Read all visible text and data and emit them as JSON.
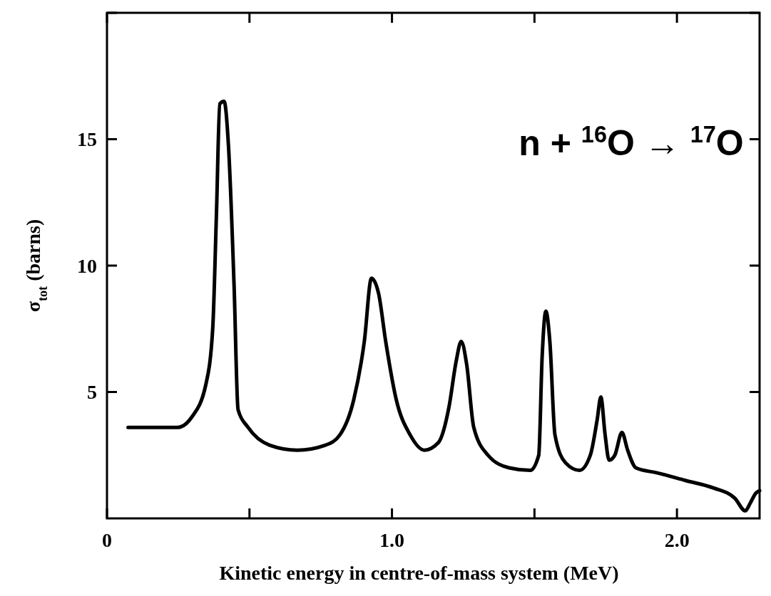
{
  "chart_data": {
    "type": "line",
    "xlabel": "Kinetic energy in centre-of-mass system (MeV)",
    "ylabel": "σ$_{tot}$ (barns)",
    "annotations": [
      "n + $^{16}$O → $^{17}$O"
    ],
    "xlim": [
      0,
      2.29
    ],
    "ylim": [
      0,
      20
    ],
    "xticks": [
      0,
      {
        "value": 0.5,
        "label": null
      },
      {
        "value": 1,
        "label": "1.0"
      },
      {
        "value": 1.5,
        "label": null
      },
      {
        "value": 2,
        "label": "2.0"
      }
    ],
    "yticks": [
      5,
      10,
      15,
      {
        "value": 20,
        "label": null
      }
    ],
    "grid": false,
    "marker": "none",
    "line_style": "solid",
    "series": [
      {
        "color": "#000000",
        "x": [
          0.074,
          0.248,
          0.297,
          0.347,
          0.371,
          0.384,
          0.396,
          0.411,
          0.426,
          0.446,
          0.46,
          0.495,
          0.57,
          0.668,
          0.767,
          0.817,
          0.866,
          0.903,
          0.928,
          0.953,
          0.978,
          1.015,
          1.064,
          1.114,
          1.163,
          1.2,
          1.225,
          1.243,
          1.262,
          1.287,
          1.337,
          1.411,
          1.485,
          1.515,
          1.527,
          1.54,
          1.554,
          1.572,
          1.609,
          1.658,
          1.696,
          1.72,
          1.733,
          1.748,
          1.762,
          1.782,
          1.807,
          1.827,
          1.856,
          1.931,
          2.03,
          2.129,
          2.203,
          2.24,
          2.257,
          2.277,
          2.29
        ],
        "values": [
          3.6,
          3.6,
          4.0,
          5.3,
          7.5,
          12.0,
          16.4,
          16.5,
          14.8,
          9.2,
          4.3,
          3.6,
          2.9,
          2.7,
          2.9,
          3.3,
          4.7,
          7.0,
          9.5,
          8.9,
          7.0,
          4.7,
          3.3,
          2.7,
          3.0,
          4.4,
          6.2,
          7.0,
          6.1,
          3.6,
          2.5,
          2.0,
          1.9,
          2.5,
          6.4,
          8.2,
          7.0,
          3.3,
          2.2,
          1.9,
          2.5,
          3.9,
          4.8,
          3.3,
          2.3,
          2.5,
          3.4,
          2.7,
          2.0,
          1.8,
          1.5,
          1.2,
          0.8,
          0.3,
          0.6,
          1.0,
          1.1
        ]
      }
    ]
  }
}
